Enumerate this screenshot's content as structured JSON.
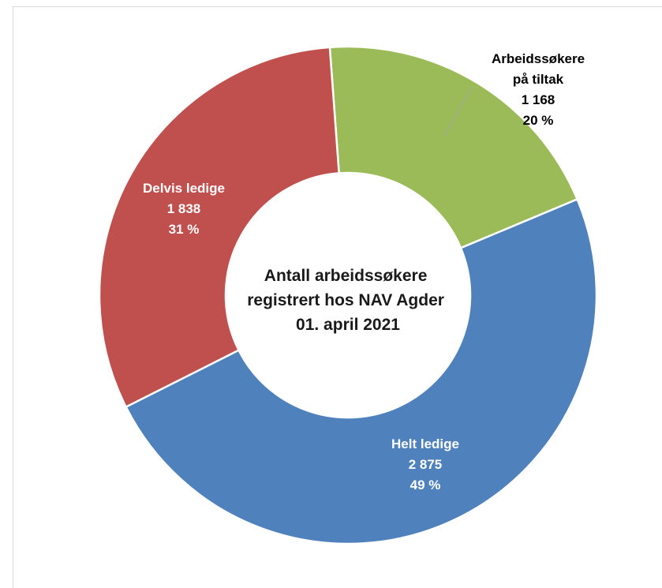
{
  "chart_data": {
    "type": "pie",
    "variant": "donut",
    "title": [
      "Antall arbeidssøkere",
      "registrert hos NAV Agder",
      "01. april 2021"
    ],
    "slices": [
      {
        "label": "Arbeidssøkere på tiltak",
        "label_lines": [
          "Arbeidssøkere",
          "på tiltak"
        ],
        "value": 1168,
        "value_text": "1 168",
        "percent_text": "20 %",
        "color": "#9BBB59",
        "label_color": "#000000"
      },
      {
        "label": "Helt ledige",
        "label_lines": [
          "Helt ledige"
        ],
        "value": 2875,
        "value_text": "2 875",
        "percent_text": "49 %",
        "color": "#4F81BD",
        "label_color": "#ffffff"
      },
      {
        "label": "Delvis ledige",
        "label_lines": [
          "Delvis ledige"
        ],
        "value": 1838,
        "value_text": "1 838",
        "percent_text": "31 %",
        "color": "#C0504D",
        "label_color": "#ffffff"
      }
    ],
    "legend": "none"
  }
}
